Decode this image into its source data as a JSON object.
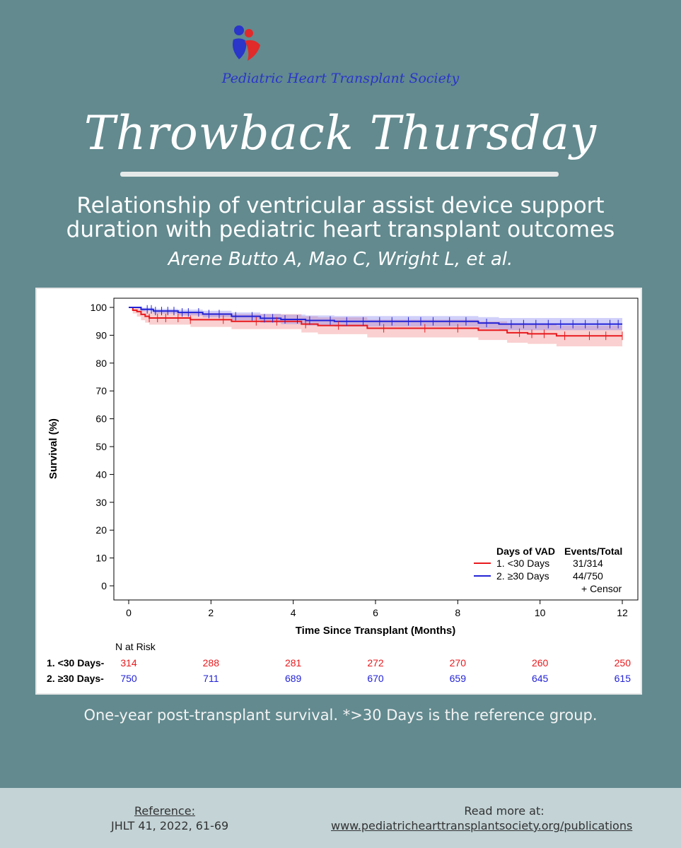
{
  "header": {
    "org_name": "Pediatric Heart Transplant Society",
    "banner": "Throwback Thursday",
    "subtitle_line1": "Relationship of ventricular assist device support",
    "subtitle_line2": "duration with pediatric heart transplant outcomes",
    "authors": "Arene Butto A, Mao C, Wright L, et al."
  },
  "colors": {
    "background": "#628a8f",
    "footer": "#c3d3d6",
    "red": "#e8191d",
    "blue": "#2323d6"
  },
  "chart_data": {
    "type": "line",
    "xlabel": "Time Since Transplant (Months)",
    "ylabel": "Survival (%)",
    "xlim": [
      0,
      12
    ],
    "ylim": [
      0,
      100
    ],
    "x_ticks": [
      0,
      2,
      4,
      6,
      8,
      10,
      12
    ],
    "y_ticks": [
      0,
      10,
      20,
      30,
      40,
      50,
      60,
      70,
      80,
      90,
      100
    ],
    "legend": {
      "placement": "bottom-right",
      "title": "Days of VAD",
      "events_header": "Events/Total",
      "censor_label": "+ Censor"
    },
    "series": [
      {
        "name": "1. <30 Days",
        "color": "#e8191d",
        "events_total": "31/314",
        "x": [
          0,
          0.1,
          0.2,
          0.3,
          0.4,
          0.5,
          1.0,
          1.5,
          2.5,
          4.2,
          4.6,
          5.8,
          8.5,
          9.2,
          9.7,
          10.4,
          12
        ],
        "y": [
          100,
          99,
          98.5,
          97.5,
          96.8,
          96.2,
          96.2,
          95.6,
          95.0,
          94.0,
          93.5,
          92.5,
          91.8,
          90.9,
          90.5,
          89.8,
          89.8
        ],
        "ci_upper": [
          100,
          100,
          99.8,
          99.3,
          98.8,
          98.4,
          98.4,
          98.0,
          97.6,
          96.8,
          96.4,
          95.6,
          95.0,
          94.3,
          93.9,
          93.4,
          93.4
        ],
        "ci_lower": [
          100,
          97.8,
          96.7,
          95.4,
          94.5,
          93.8,
          93.8,
          93.0,
          92.2,
          91.0,
          90.4,
          89.2,
          88.3,
          87.3,
          86.9,
          86.0,
          86.0
        ],
        "censor_x": [
          0.5,
          0.7,
          0.9,
          1.2,
          1.5,
          2.3,
          3.1,
          3.6,
          4.3,
          5.1,
          6.2,
          7.2,
          8.0,
          9.5,
          9.8,
          10.1,
          10.6,
          11.2,
          11.6,
          12
        ]
      },
      {
        "name": "2. ≥30 Days",
        "color": "#2323d6",
        "events_total": "44/750",
        "x": [
          0,
          0.3,
          0.6,
          1.2,
          1.8,
          2.5,
          3.2,
          3.7,
          4.3,
          5.0,
          7.0,
          8.5,
          9.0,
          12
        ],
        "y": [
          100,
          99.3,
          98.7,
          98.2,
          97.6,
          96.8,
          96.1,
          95.7,
          95.3,
          95.0,
          95.0,
          94.4,
          94.0,
          94.0
        ],
        "ci_upper": [
          100,
          99.9,
          99.5,
          99.2,
          98.8,
          98.2,
          97.7,
          97.4,
          97.1,
          96.9,
          96.9,
          96.5,
          96.2,
          96.2
        ],
        "ci_lower": [
          100,
          98.6,
          97.8,
          97.1,
          96.4,
          95.4,
          94.5,
          94.0,
          93.5,
          93.1,
          93.1,
          92.3,
          91.8,
          91.8
        ],
        "censor_x": [
          0.45,
          0.55,
          0.65,
          0.8,
          0.95,
          1.1,
          1.3,
          1.45,
          1.7,
          1.95,
          2.2,
          2.6,
          3.0,
          3.3,
          3.5,
          3.8,
          4.1,
          4.4,
          4.9,
          5.3,
          5.7,
          6.1,
          6.4,
          6.8,
          7.1,
          7.4,
          7.8,
          8.2,
          8.7,
          9.3,
          9.6,
          9.9,
          10.2,
          10.5,
          10.8,
          11.1,
          11.4,
          11.7,
          11.9
        ]
      }
    ],
    "risk_table": {
      "header": "N at Risk",
      "rows": [
        {
          "label": "1. <30 Days-",
          "color": "#e8191d",
          "values": [
            "314",
            "288",
            "281",
            "272",
            "270",
            "260",
            "250"
          ]
        },
        {
          "label": "2. ≥30 Days-",
          "color": "#2323d6",
          "values": [
            "750",
            "711",
            "689",
            "670",
            "659",
            "645",
            "615"
          ]
        }
      ]
    }
  },
  "caption": "One-year post-transplant survival. *>30 Days is the reference group.",
  "footer": {
    "reference_label": "Reference:",
    "reference_value": "JHLT 41, 2022, 61-69",
    "read_more_label": "Read more at:",
    "read_more_link": "www.pediatrichearttransplantsociety.org/publications"
  }
}
